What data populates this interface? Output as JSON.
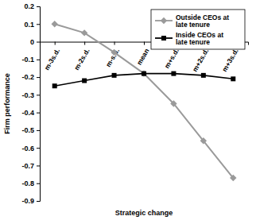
{
  "chart_data": {
    "type": "line",
    "x_label": "Strategic change",
    "y_label": "Firm performance",
    "categories": [
      "m-3s.d.",
      "m-2s.d.",
      "m-s.d.",
      "mean",
      "m+s.d.",
      "m+2s.d.",
      "m+3s.d."
    ],
    "series": [
      {
        "name": "Outside CEOs at late tenure",
        "color": "#9a9a9a",
        "marker": "diamond",
        "line_style": "solid",
        "values": [
          0.1,
          0.05,
          -0.06,
          -0.18,
          -0.35,
          -0.56,
          -0.77
        ]
      },
      {
        "name": "Inside CEOs at late tenure",
        "color": "#000000",
        "marker": "square",
        "line_style": "solid",
        "values": [
          -0.25,
          -0.22,
          -0.19,
          -0.18,
          -0.18,
          -0.19,
          -0.21
        ]
      }
    ],
    "ylim": [
      -0.9,
      0.2
    ],
    "yticks": [
      0.2,
      0.1,
      0,
      -0.1,
      -0.2,
      -0.3,
      -0.4,
      -0.5,
      -0.6,
      -0.7,
      -0.8,
      -0.9
    ],
    "grid": false,
    "legend": "upper right"
  }
}
